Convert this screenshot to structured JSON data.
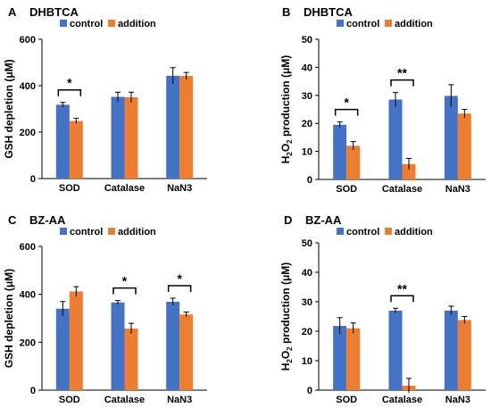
{
  "colors": {
    "control": "#4472C4",
    "addition": "#ED7D31",
    "axis": "#000000",
    "errorbar": "#000000"
  },
  "chart_data": [
    {
      "type": "bar",
      "panel_letter": "A",
      "title": "DHBTCA",
      "ylabel": "GSH depletion (μM)",
      "ylim": [
        0,
        600
      ],
      "yticks": [
        "0",
        "200",
        "400",
        "600"
      ],
      "categories": [
        "SOD",
        "Catalase",
        "NaN3"
      ],
      "legend": [
        "control",
        "addition"
      ],
      "legend_position": "top",
      "series": [
        {
          "name": "control",
          "values": [
            318,
            352,
            443
          ],
          "errors": [
            10,
            20,
            35
          ]
        },
        {
          "name": "addition",
          "values": [
            248,
            350,
            442
          ],
          "errors": [
            12,
            22,
            15
          ]
        }
      ],
      "significance": [
        {
          "category": 0,
          "label": "*"
        }
      ]
    },
    {
      "type": "bar",
      "panel_letter": "B",
      "title": "DHBTCA",
      "ylabel": "H2O2 production (μM)",
      "ylim": [
        0,
        50
      ],
      "yticks": [
        "0",
        "10",
        "20",
        "30",
        "40",
        "50"
      ],
      "categories": [
        "SOD",
        "Catalase",
        "NaN3"
      ],
      "legend": [
        "control",
        "addition"
      ],
      "legend_position": "top",
      "series": [
        {
          "name": "control",
          "values": [
            19.5,
            28.5,
            29.8
          ],
          "errors": [
            1,
            2.5,
            4
          ]
        },
        {
          "name": "addition",
          "values": [
            12,
            5.5,
            23.5
          ],
          "errors": [
            1.5,
            2,
            1.5
          ]
        }
      ],
      "significance": [
        {
          "category": 0,
          "label": "*"
        },
        {
          "category": 1,
          "label": "**"
        }
      ]
    },
    {
      "type": "bar",
      "panel_letter": "C",
      "title": "BZ-AA",
      "ylabel": "GSH depletion (μM)",
      "ylim": [
        0,
        600
      ],
      "yticks": [
        "0",
        "200",
        "400",
        "600"
      ],
      "categories": [
        "SOD",
        "Catalase",
        "NaN3"
      ],
      "legend": [
        "control",
        "addition"
      ],
      "legend_position": "top",
      "series": [
        {
          "name": "control",
          "values": [
            340,
            366,
            369
          ],
          "errors": [
            30,
            8,
            15
          ]
        },
        {
          "name": "addition",
          "values": [
            412,
            257,
            316
          ],
          "errors": [
            20,
            22,
            10
          ]
        }
      ],
      "significance": [
        {
          "category": 1,
          "label": "*"
        },
        {
          "category": 2,
          "label": "*"
        }
      ]
    },
    {
      "type": "bar",
      "panel_letter": "D",
      "title": "BZ-AA",
      "ylabel": "H2O2 production (μM)",
      "ylim": [
        0,
        50
      ],
      "yticks": [
        "0",
        "10",
        "20",
        "30",
        "40",
        "50"
      ],
      "categories": [
        "SOD",
        "Catalase",
        "NaN3"
      ],
      "legend": [
        "control",
        "addition"
      ],
      "legend_position": "top",
      "series": [
        {
          "name": "control",
          "values": [
            21.8,
            27,
            27
          ],
          "errors": [
            2.8,
            0.8,
            1.5
          ]
        },
        {
          "name": "addition",
          "values": [
            21,
            1.5,
            23.8
          ],
          "errors": [
            1.8,
            2.5,
            1.2
          ]
        }
      ],
      "significance": [
        {
          "category": 1,
          "label": "**"
        }
      ]
    }
  ]
}
